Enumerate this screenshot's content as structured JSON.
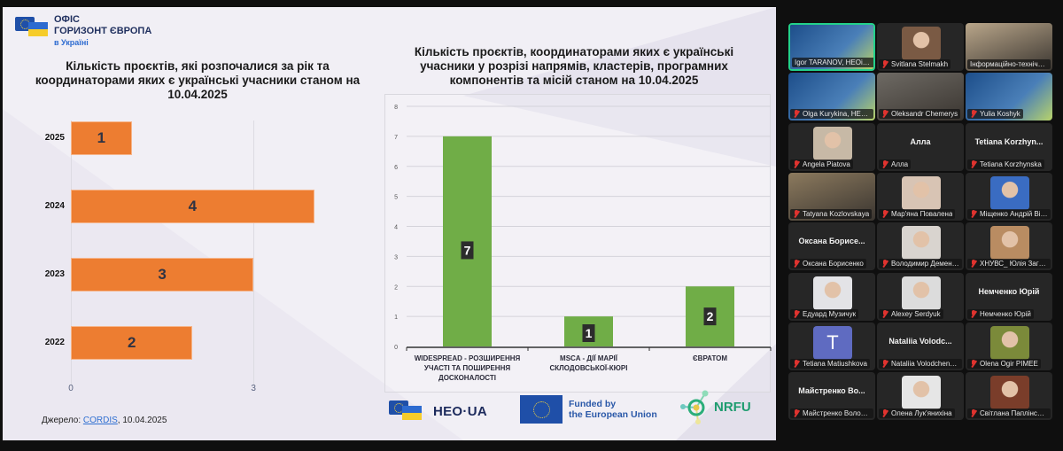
{
  "slide": {
    "logo": {
      "line1": "ОФІС",
      "line2": "ГОРИЗОНТ ЄВРОПА",
      "line3": "в Україні"
    },
    "left_title": "Кількість проєктів, які розпочалися за рік та координаторами яких є українські учасники станом на 10.04.2025",
    "right_title": "Кількість проєктів, координаторами яких є українські учасники у розрізі напрямів, кластерів, програмних компонентів та місій станом на 10.04.2025",
    "source": {
      "label": "Джерело: ",
      "link": "CORDIS",
      "date": ", 10.04.2025"
    },
    "footer": {
      "heo_label": "HEO·UA",
      "eu_line1": "Funded by",
      "eu_line2": "the European Union",
      "nrfu_label": "NRFU"
    }
  },
  "chart_data": [
    {
      "type": "bar",
      "orientation": "horizontal",
      "title": "Кількість проєктів, які розпочалися за рік та координаторами яких є українські учасники станом на 10.04.2025",
      "categories": [
        "2025",
        "2024",
        "2023",
        "2022"
      ],
      "values": [
        1,
        4,
        3,
        2
      ],
      "data_labels": [
        "1",
        "4",
        "3",
        "2"
      ],
      "xticks": [
        "0",
        "3"
      ],
      "xlim": [
        0,
        4.5
      ],
      "color": "#ed7d31",
      "grid": true
    },
    {
      "type": "bar",
      "orientation": "vertical",
      "title": "Кількість проєктів, координаторами яких є українські учасники у розрізі напрямів, кластерів, програмних компонентів та місій станом на 10.04.2025",
      "categories": [
        [
          "WIDESPREAD - РОЗШИРЕННЯ",
          "УЧАСТІ ТА ПОШИРЕННЯ",
          "ДОСКОНАЛОСТІ"
        ],
        [
          "MSCA - ДІЇ МАРІЇ",
          "СКЛОДОВСЬКОЇ-КЮРІ"
        ],
        [
          "ЄВРАТОМ"
        ]
      ],
      "values": [
        7,
        1,
        2
      ],
      "data_labels": [
        "7",
        "1",
        "2"
      ],
      "yticks": [
        "0",
        "1",
        "2",
        "3",
        "4",
        "5",
        "6",
        "7",
        "8"
      ],
      "ylim": [
        0,
        8
      ],
      "color": "#70ad47",
      "grid": true
    }
  ],
  "gallery": {
    "participants": [
      {
        "name": "Igor TARANOV, HEOinUA",
        "kind": "video",
        "active": true,
        "muted": false,
        "bg": "#1d4e8a"
      },
      {
        "name": "Svitlana Stelmakh",
        "kind": "photo",
        "muted": true,
        "bg": "#7a5a44"
      },
      {
        "name": "Інформаційно-технічний...",
        "kind": "video",
        "muted": false,
        "bg": "#b9a68a"
      },
      {
        "name": "Olga Kurykina, HEOin...",
        "kind": "video",
        "muted": true,
        "bg": "#1d4e8a"
      },
      {
        "name": "Oleksandr Chemerys",
        "kind": "video",
        "muted": true,
        "bg": "#6e6a64"
      },
      {
        "name": "Yulia Koshyk",
        "kind": "video",
        "muted": true,
        "bg": "#1d4e8a"
      },
      {
        "name": "Angela Piatova",
        "kind": "photo",
        "muted": true,
        "bg": "#c7b9a6"
      },
      {
        "name": "Алла",
        "kind": "name",
        "display": "Алла",
        "muted": true
      },
      {
        "name": "Tetiana Korzhynska",
        "kind": "name",
        "display": "Tetiana  Korzhyn...",
        "muted": true
      },
      {
        "name": "Tatyana Kozlovskaya",
        "kind": "video",
        "muted": true,
        "bg": "#8c7a5e"
      },
      {
        "name": "Мар'яна Повалена",
        "kind": "photo",
        "muted": true,
        "bg": "#d8c4b4"
      },
      {
        "name": "Міщенко Андрій Віта...",
        "kind": "photo",
        "muted": true,
        "bg": "#3a6cc2"
      },
      {
        "name": "Оксана Борисенко",
        "kind": "name",
        "display": "Оксана  Борисе...",
        "muted": true
      },
      {
        "name": "Володимир Дементов",
        "kind": "photo",
        "muted": true,
        "bg": "#d9d4cf"
      },
      {
        "name": "ХНУВС_ Юлія Загуме...",
        "kind": "photo",
        "muted": true,
        "bg": "#b98c62"
      },
      {
        "name": "Едуард Музичук",
        "kind": "photo",
        "muted": true,
        "bg": "#e3e3e6"
      },
      {
        "name": "Alexey Serdyuk",
        "kind": "photo",
        "muted": true,
        "bg": "#dcdcdc"
      },
      {
        "name": "Немченко Юрій",
        "kind": "name",
        "display": "Немченко Юрій",
        "muted": true
      },
      {
        "name": "Tetiana Matiushkova",
        "kind": "initial",
        "initial": "T",
        "muted": true
      },
      {
        "name": "Nataliia Volodchenko...",
        "kind": "name",
        "display": "Nataliia  Volodc...",
        "muted": true
      },
      {
        "name": "Olena Ogir PIMEE",
        "kind": "photo",
        "muted": true,
        "bg": "#7b8a3a"
      },
      {
        "name": "Майстренко Володи...",
        "kind": "name",
        "display": "Майстренко  Во...",
        "muted": true
      },
      {
        "name": "Олена Лук'янихіна",
        "kind": "photo",
        "muted": true,
        "bg": "#e6e6e6"
      },
      {
        "name": "Світлана Паплінська",
        "kind": "photo",
        "muted": true,
        "bg": "#7a3d2a"
      }
    ]
  }
}
